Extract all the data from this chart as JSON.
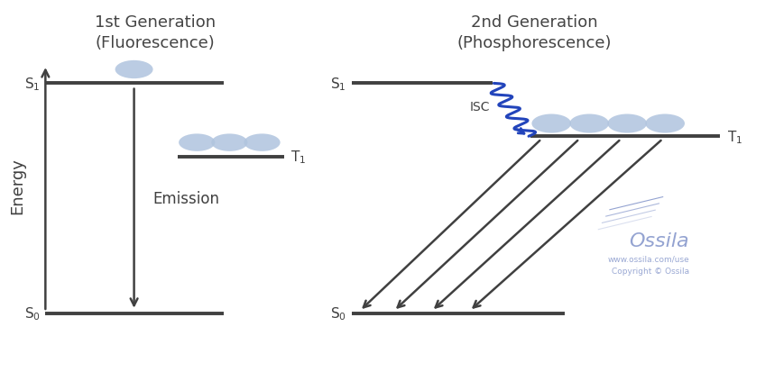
{
  "background_color": "#ffffff",
  "title_fluor": "1st Generation\n(Fluorescence)",
  "title_phos": "2nd Generation\n(Phosphorescence)",
  "title_fontsize": 13,
  "line_color": "#404040",
  "line_lw": 2.8,
  "arrow_color": "#404040",
  "circle_color": "#b0c4de",
  "circle_alpha": 0.85,
  "isc_color": "#2244bb",
  "ossila_text_color": "#8899cc",
  "ylabel": "Energy",
  "ylabel_fontsize": 13,
  "label_fontsize": 11,
  "emission_fontsize": 12
}
